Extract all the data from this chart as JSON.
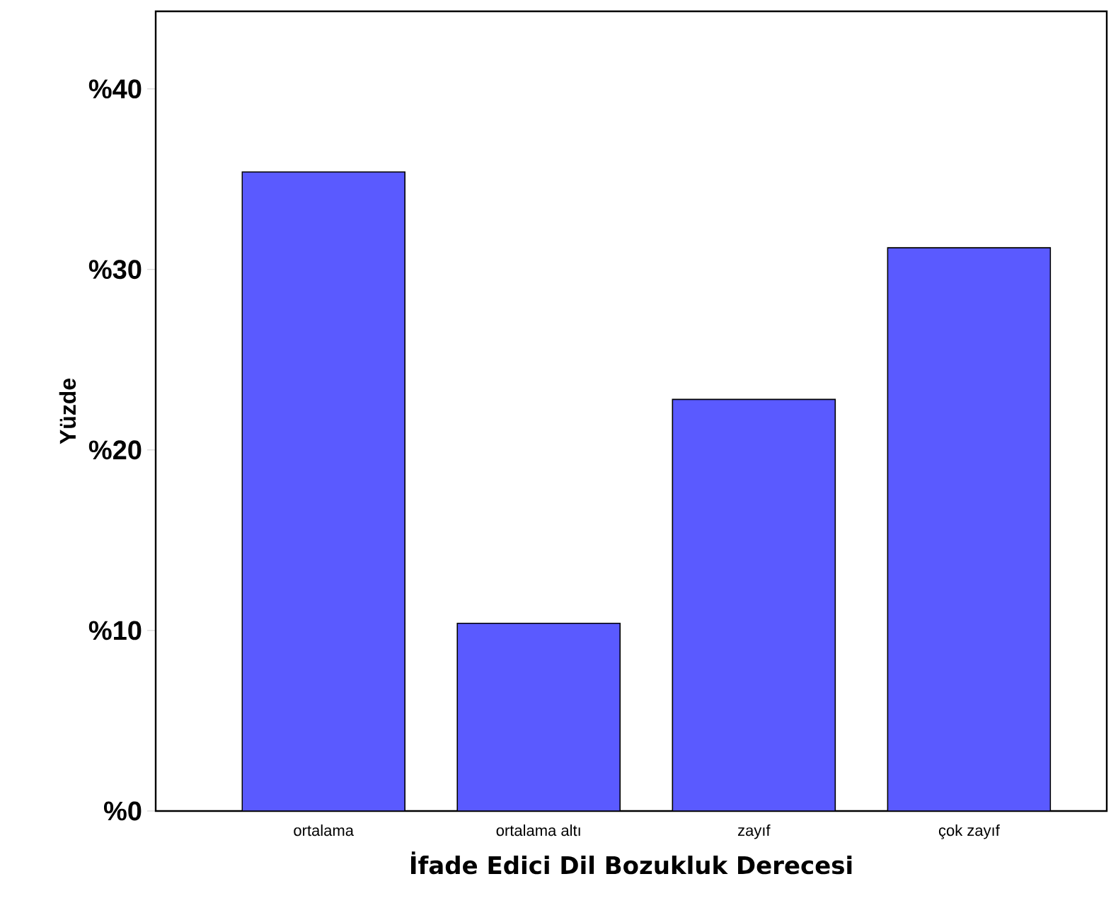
{
  "chart_data": {
    "type": "bar",
    "xlabel": "İfade Edici Dil Bozukluk Derecesi",
    "ylabel": "Yüzde",
    "categories": [
      "ortalama",
      "ortalama altı",
      "zayıf",
      "çok zayıf"
    ],
    "values": [
      35.4,
      10.4,
      22.8,
      31.2
    ],
    "color": "#5a5aff",
    "ylim": [
      0,
      44.3
    ],
    "yticks": [
      {
        "value": 0,
        "label": "%0"
      },
      {
        "value": 10,
        "label": "%10"
      },
      {
        "value": 20,
        "label": "%20"
      },
      {
        "value": 30,
        "label": "%30"
      },
      {
        "value": 40,
        "label": "%40"
      }
    ],
    "grid": false
  }
}
